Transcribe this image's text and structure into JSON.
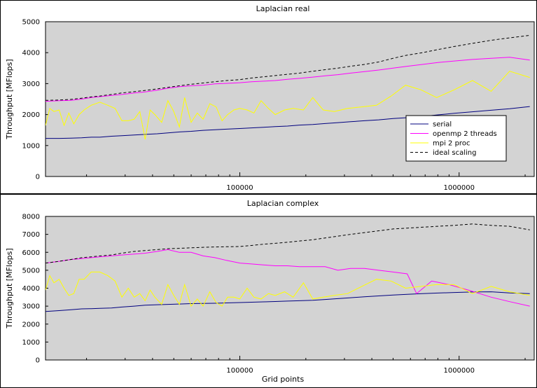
{
  "chart_data": [
    {
      "type": "line",
      "title": "Laplacian real",
      "xlabel": "",
      "ylabel": "Throughput [MFlops]",
      "xscale": "log",
      "xlim": [
        13000,
        2200000
      ],
      "ylim": [
        0,
        5000
      ],
      "yticks": [
        0,
        1000,
        2000,
        3000,
        4000,
        5000
      ],
      "xticks": [
        100000,
        1000000
      ],
      "xticklabels": [
        "100000",
        "1000000"
      ],
      "grid": false,
      "background": "#d3d3d3",
      "legend_placement": "lower-right",
      "series": [
        {
          "name": "serial",
          "color": "#00007f",
          "dash": "",
          "x": [
            13000,
            15000,
            17000,
            19000,
            21000,
            23000,
            26000,
            29000,
            33000,
            37000,
            42000,
            47000,
            53000,
            60000,
            68000,
            77000,
            87000,
            100000,
            113000,
            128000,
            145000,
            165000,
            187000,
            215000,
            245000,
            280000,
            320000,
            370000,
            430000,
            500000,
            580000,
            680000,
            800000,
            950000,
            1150000,
            1400000,
            1700000,
            2100000
          ],
          "y": [
            1230,
            1230,
            1240,
            1250,
            1270,
            1270,
            1300,
            1320,
            1340,
            1360,
            1380,
            1410,
            1440,
            1460,
            1490,
            1510,
            1530,
            1550,
            1570,
            1590,
            1610,
            1630,
            1660,
            1680,
            1710,
            1740,
            1770,
            1800,
            1830,
            1870,
            1900,
            1940,
            1990,
            2040,
            2090,
            2140,
            2190,
            2260
          ]
        },
        {
          "name": "openmp 2 threads",
          "color": "#ff00ff",
          "dash": "",
          "x": [
            13000,
            15000,
            17000,
            19000,
            21000,
            23000,
            26000,
            29000,
            33000,
            37000,
            42000,
            47000,
            53000,
            60000,
            68000,
            77000,
            87000,
            100000,
            113000,
            128000,
            145000,
            165000,
            187000,
            215000,
            245000,
            280000,
            320000,
            370000,
            430000,
            500000,
            580000,
            680000,
            800000,
            950000,
            1150000,
            1400000,
            1700000,
            2100000
          ],
          "y": [
            2430,
            2450,
            2460,
            2500,
            2550,
            2580,
            2620,
            2650,
            2700,
            2730,
            2790,
            2850,
            2900,
            2930,
            2950,
            2990,
            3010,
            3030,
            3060,
            3080,
            3100,
            3140,
            3170,
            3210,
            3250,
            3290,
            3340,
            3390,
            3440,
            3500,
            3560,
            3620,
            3680,
            3730,
            3780,
            3820,
            3850,
            3760
          ]
        },
        {
          "name": "mpi 2 proc",
          "color": "#ffff00",
          "dash": "",
          "x": [
            13000,
            13600,
            14200,
            15000,
            15800,
            16600,
            17500,
            18500,
            19500,
            21000,
            23000,
            25000,
            27000,
            29000,
            31000,
            33000,
            35000,
            37000,
            39000,
            41000,
            44000,
            47000,
            50000,
            53000,
            56000,
            60000,
            64000,
            68000,
            73000,
            78000,
            83000,
            88000,
            94000,
            100000,
            108000,
            116000,
            125000,
            135000,
            145000,
            160000,
            175000,
            195000,
            215000,
            240000,
            270000,
            310000,
            360000,
            420000,
            490000,
            570000,
            670000,
            790000,
            950000,
            1150000,
            1400000,
            1700000,
            2100000
          ],
          "y": [
            1650,
            2200,
            2100,
            2150,
            1650,
            2050,
            1700,
            2000,
            2150,
            2300,
            2400,
            2300,
            2200,
            1800,
            1800,
            1850,
            2100,
            1200,
            2150,
            2000,
            1750,
            2450,
            2100,
            1600,
            2550,
            1750,
            2050,
            1850,
            2350,
            2250,
            1800,
            2000,
            2150,
            2200,
            2150,
            2050,
            2450,
            2200,
            2000,
            2150,
            2200,
            2150,
            2550,
            2150,
            2100,
            2200,
            2250,
            2300,
            2600,
            2950,
            2800,
            2550,
            2800,
            3100,
            2750,
            3400,
            3200
          ]
        },
        {
          "name": "ideal scaling",
          "color": "#000000",
          "dash": "4,3",
          "x": [
            13000,
            15000,
            17000,
            19000,
            21000,
            23000,
            26000,
            29000,
            33000,
            37000,
            42000,
            47000,
            53000,
            60000,
            68000,
            77000,
            87000,
            100000,
            113000,
            128000,
            145000,
            165000,
            187000,
            215000,
            245000,
            280000,
            320000,
            370000,
            430000,
            500000,
            580000,
            680000,
            800000,
            950000,
            1150000,
            1400000,
            1700000,
            2100000
          ],
          "y": [
            2460,
            2470,
            2490,
            2530,
            2570,
            2600,
            2650,
            2700,
            2740,
            2780,
            2830,
            2880,
            2930,
            2980,
            3020,
            3060,
            3100,
            3130,
            3180,
            3220,
            3260,
            3300,
            3340,
            3400,
            3450,
            3500,
            3560,
            3620,
            3700,
            3820,
            3920,
            4000,
            4100,
            4200,
            4300,
            4400,
            4480,
            4560
          ]
        }
      ]
    },
    {
      "type": "line",
      "title": "Laplacian complex",
      "xlabel": "Grid points",
      "ylabel": "Throughput [MFlops]",
      "xscale": "log",
      "xlim": [
        13000,
        2200000
      ],
      "ylim": [
        0,
        8000
      ],
      "yticks": [
        0,
        1000,
        2000,
        3000,
        4000,
        5000,
        6000,
        7000,
        8000
      ],
      "xticks": [
        100000,
        1000000
      ],
      "xticklabels": [
        "100000",
        "1000000"
      ],
      "grid": false,
      "background": "#d3d3d3",
      "series": [
        {
          "name": "serial",
          "color": "#00007f",
          "dash": "",
          "x": [
            13000,
            15000,
            17000,
            19000,
            21000,
            23000,
            26000,
            29000,
            33000,
            37000,
            42000,
            47000,
            53000,
            60000,
            68000,
            77000,
            87000,
            100000,
            113000,
            128000,
            145000,
            165000,
            187000,
            215000,
            245000,
            280000,
            320000,
            370000,
            430000,
            500000,
            580000,
            680000,
            800000,
            950000,
            1150000,
            1400000,
            1700000,
            2100000
          ],
          "y": [
            2700,
            2750,
            2800,
            2850,
            2860,
            2880,
            2900,
            2950,
            3000,
            3050,
            3080,
            3100,
            3120,
            3140,
            3150,
            3160,
            3180,
            3200,
            3220,
            3240,
            3260,
            3280,
            3300,
            3330,
            3370,
            3420,
            3470,
            3520,
            3570,
            3620,
            3660,
            3700,
            3730,
            3760,
            3790,
            3800,
            3740,
            3700
          ]
        },
        {
          "name": "openmp 2 threads",
          "color": "#ff00ff",
          "dash": "",
          "x": [
            13000,
            15000,
            17000,
            19000,
            21000,
            23000,
            26000,
            29000,
            33000,
            37000,
            42000,
            47000,
            53000,
            60000,
            68000,
            77000,
            87000,
            100000,
            113000,
            128000,
            145000,
            165000,
            187000,
            215000,
            245000,
            280000,
            320000,
            370000,
            430000,
            500000,
            580000,
            640000,
            750000,
            900000,
            1100000,
            1400000,
            1700000,
            2100000
          ],
          "y": [
            5400,
            5500,
            5600,
            5650,
            5700,
            5750,
            5800,
            5850,
            5900,
            5950,
            6050,
            6150,
            6000,
            6000,
            5800,
            5700,
            5550,
            5400,
            5350,
            5300,
            5250,
            5250,
            5200,
            5200,
            5200,
            5000,
            5100,
            5100,
            5000,
            4900,
            4800,
            3700,
            4400,
            4200,
            3900,
            3500,
            3250,
            3000
          ]
        },
        {
          "name": "mpi 2 proc",
          "color": "#ffff00",
          "dash": "",
          "x": [
            13000,
            13600,
            14200,
            15000,
            15800,
            16600,
            17500,
            18500,
            19500,
            21000,
            23000,
            25000,
            27000,
            29000,
            31000,
            33000,
            35000,
            37000,
            39000,
            41000,
            44000,
            47000,
            50000,
            53000,
            56000,
            60000,
            64000,
            68000,
            73000,
            78000,
            83000,
            88000,
            94000,
            100000,
            108000,
            116000,
            125000,
            135000,
            145000,
            160000,
            175000,
            195000,
            215000,
            240000,
            270000,
            310000,
            360000,
            420000,
            490000,
            570000,
            670000,
            790000,
            950000,
            1150000,
            1400000,
            1700000,
            2100000
          ],
          "y": [
            3900,
            4700,
            4300,
            4500,
            4000,
            3600,
            3700,
            4500,
            4500,
            4900,
            4900,
            4700,
            4400,
            3500,
            4000,
            3500,
            3700,
            3300,
            3900,
            3500,
            3100,
            4200,
            3600,
            3100,
            4200,
            3000,
            3400,
            3000,
            3800,
            3200,
            3000,
            3500,
            3500,
            3400,
            4000,
            3500,
            3400,
            3700,
            3600,
            3800,
            3500,
            4300,
            3400,
            3500,
            3600,
            3700,
            4100,
            4500,
            4400,
            4000,
            4100,
            4200,
            4200,
            3700,
            4100,
            3800,
            3600
          ]
        },
        {
          "name": "ideal scaling",
          "color": "#000000",
          "dash": "4,3",
          "x": [
            13000,
            15000,
            17000,
            19000,
            21000,
            23000,
            26000,
            29000,
            33000,
            37000,
            42000,
            47000,
            53000,
            60000,
            68000,
            77000,
            87000,
            100000,
            113000,
            128000,
            145000,
            165000,
            187000,
            215000,
            245000,
            280000,
            320000,
            370000,
            430000,
            500000,
            580000,
            680000,
            800000,
            950000,
            1150000,
            1400000,
            1700000,
            2100000
          ],
          "y": [
            5400,
            5500,
            5600,
            5700,
            5750,
            5800,
            5850,
            5950,
            6050,
            6100,
            6150,
            6200,
            6220,
            6250,
            6280,
            6300,
            6310,
            6320,
            6380,
            6450,
            6500,
            6560,
            6630,
            6700,
            6800,
            6900,
            7000,
            7100,
            7200,
            7300,
            7350,
            7400,
            7450,
            7500,
            7580,
            7500,
            7450,
            7250
          ]
        }
      ]
    }
  ]
}
